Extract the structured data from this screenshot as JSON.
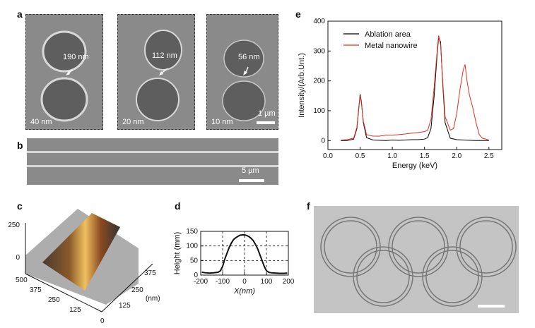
{
  "labels": {
    "a": "a",
    "b": "b",
    "c": "c",
    "d": "d",
    "e": "e",
    "f": "f"
  },
  "panel_a": {
    "images": [
      {
        "gap": "190 nm",
        "thickness": "40 nm"
      },
      {
        "gap": "112 nm",
        "thickness": "20 nm"
      },
      {
        "gap": "56 nm",
        "thickness": "10 nm",
        "scalebar": "1 µm"
      }
    ]
  },
  "panel_b": {
    "scalebar": "5 µm"
  },
  "panel_c": {
    "z_ticks": [
      "250",
      "0"
    ],
    "x_ticks": [
      "500",
      "375",
      "250",
      "125",
      "0"
    ],
    "y_ticks": [
      "375",
      "250",
      "125"
    ],
    "unit": "(nm)"
  },
  "chart_data": [
    {
      "panel": "d",
      "type": "line",
      "xlabel": "X(nm)",
      "ylabel": "Height (mm)",
      "xlim": [
        -200,
        200
      ],
      "ylim": [
        0,
        150
      ],
      "x_ticks": [
        -200,
        -100,
        0,
        100,
        200
      ],
      "y_ticks": [
        0,
        50,
        100,
        150
      ],
      "grid": true,
      "series": [
        {
          "x": [
            -195,
            -180,
            -160,
            -140,
            -120,
            -110,
            -100,
            -90,
            -80,
            -70,
            -60,
            -50,
            -40,
            -30,
            -20,
            -10,
            0,
            10,
            20,
            30,
            40,
            50,
            60,
            70,
            80,
            90,
            100,
            110,
            120,
            140,
            160,
            180,
            195
          ],
          "y": [
            10,
            8,
            7,
            8,
            10,
            15,
            30,
            55,
            75,
            95,
            110,
            122,
            128,
            133,
            137,
            138,
            138,
            136,
            132,
            126,
            118,
            105,
            90,
            70,
            50,
            30,
            15,
            10,
            8,
            7,
            6,
            6,
            7
          ]
        }
      ]
    },
    {
      "panel": "e",
      "type": "line",
      "xlabel": "Energy (keV)",
      "ylabel": "Intensity/(Arb.Unt.)",
      "xlim": [
        0,
        2.7
      ],
      "ylim": [
        -30,
        400
      ],
      "x_ticks": [
        0.0,
        0.5,
        1.0,
        1.5,
        2.0,
        2.5
      ],
      "y_ticks": [
        0,
        100,
        200,
        300,
        400
      ],
      "legend": "top-left",
      "series": [
        {
          "name": "Ablation area",
          "color": "#000000",
          "x": [
            0.2,
            0.3,
            0.4,
            0.45,
            0.48,
            0.5,
            0.52,
            0.55,
            0.6,
            0.7,
            0.8,
            0.9,
            1.0,
            1.1,
            1.2,
            1.3,
            1.4,
            1.5,
            1.55,
            1.6,
            1.65,
            1.7,
            1.72,
            1.75,
            1.78,
            1.82,
            1.9,
            2.0,
            2.1,
            2.2,
            2.3,
            2.4,
            2.5
          ],
          "y": [
            0,
            0,
            5,
            40,
            110,
            155,
            130,
            60,
            10,
            2,
            1,
            0,
            2,
            1,
            2,
            3,
            3,
            5,
            10,
            40,
            150,
            300,
            345,
            330,
            200,
            60,
            8,
            3,
            2,
            1,
            0,
            0,
            0
          ]
        },
        {
          "name": "Metal nanowire",
          "color": "#e03020",
          "x": [
            0.2,
            0.3,
            0.4,
            0.45,
            0.48,
            0.5,
            0.52,
            0.55,
            0.6,
            0.7,
            0.8,
            0.9,
            1.0,
            1.1,
            1.2,
            1.3,
            1.4,
            1.5,
            1.55,
            1.6,
            1.65,
            1.7,
            1.72,
            1.75,
            1.78,
            1.82,
            1.9,
            1.95,
            2.0,
            2.05,
            2.1,
            2.13,
            2.16,
            2.2,
            2.25,
            2.3,
            2.35,
            2.4,
            2.5
          ],
          "y": [
            2,
            3,
            8,
            45,
            115,
            150,
            125,
            65,
            20,
            15,
            15,
            18,
            18,
            20,
            22,
            25,
            27,
            30,
            35,
            70,
            180,
            310,
            352,
            320,
            210,
            80,
            35,
            40,
            90,
            170,
            235,
            255,
            200,
            150,
            110,
            60,
            20,
            8,
            2
          ]
        }
      ]
    }
  ]
}
